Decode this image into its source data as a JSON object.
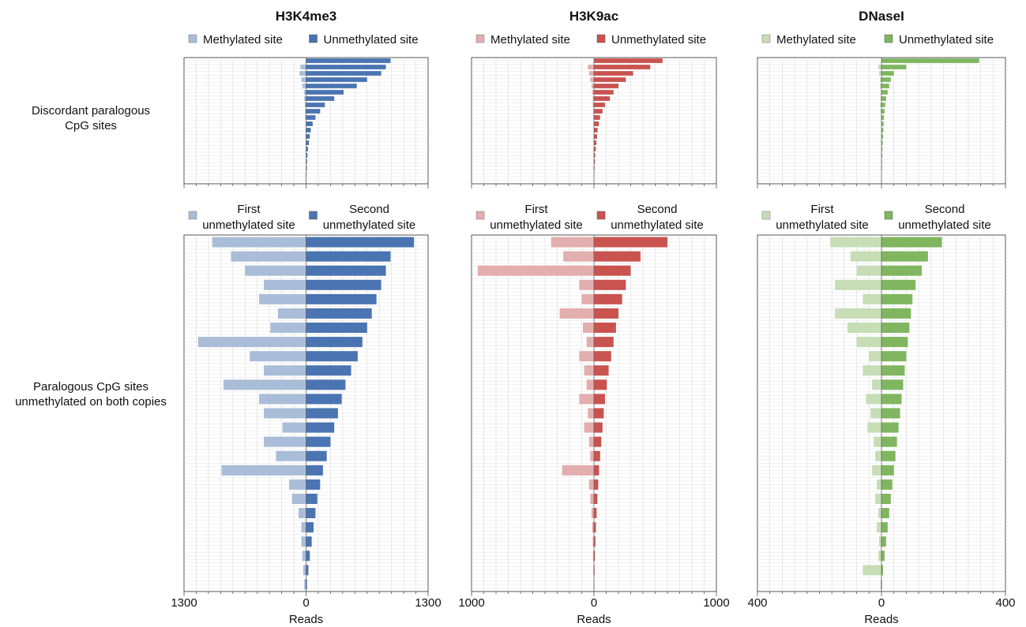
{
  "row_labels": {
    "top": [
      "Discordant paralogous",
      "CpG sites"
    ],
    "bottom": [
      "Paralogous CpG sites",
      "unmethylated on both copies"
    ]
  },
  "axis_label": "Reads",
  "legends": {
    "top": {
      "left": "Methylated site",
      "right": "Unmethylated site"
    },
    "bottom": {
      "left": [
        "First",
        "unmethylated site"
      ],
      "right": [
        "Second",
        "unmethylated site"
      ]
    }
  },
  "panels": [
    {
      "title": "H3K4me3",
      "max": 1300,
      "tick_left": "1300",
      "tick_zero": "0",
      "tick_right": "1300",
      "colors": {
        "light": "#a9bdd8",
        "dark": "#4a74b2"
      }
    },
    {
      "title": "H3K9ac",
      "max": 1000,
      "tick_left": "1000",
      "tick_zero": "0",
      "tick_right": "1000",
      "colors": {
        "light": "#e3aeae",
        "dark": "#c9534f"
      }
    },
    {
      "title": "DNaseI",
      "max": 400,
      "tick_left": "400",
      "tick_zero": "0",
      "tick_right": "400",
      "colors": {
        "light": "#c6ddb6",
        "dark": "#7fb65f"
      }
    }
  ],
  "chart_data": [
    {
      "type": "bar",
      "title": "H3K4me3",
      "subplot": "Discordant paralogous CpG sites",
      "series": [
        {
          "name": "Methylated site",
          "values": [
            0,
            -60,
            -70,
            -50,
            -40,
            -20,
            -20,
            -15,
            -10,
            -10,
            -5,
            -5,
            -5,
            0,
            0,
            0,
            0,
            0,
            0,
            0
          ]
        },
        {
          "name": "Unmethylated site",
          "values": [
            900,
            850,
            800,
            650,
            540,
            400,
            300,
            200,
            150,
            100,
            70,
            50,
            40,
            30,
            20,
            15,
            10,
            8,
            5,
            3
          ]
        }
      ],
      "xlabel": "Reads",
      "xlim": [
        -1300,
        1300
      ]
    },
    {
      "type": "bar",
      "title": "H3K4me3",
      "subplot": "Paralogous CpG sites unmethylated on both copies",
      "series": [
        {
          "name": "First unmethylated site",
          "values": [
            -1000,
            -800,
            -650,
            -450,
            -500,
            -300,
            -380,
            -1150,
            -600,
            -450,
            -880,
            -500,
            -450,
            -250,
            -450,
            -320,
            -900,
            -180,
            -150,
            -80,
            -50,
            -50,
            -40,
            -30,
            -20
          ]
        },
        {
          "name": "Second unmethylated site",
          "values": [
            1150,
            900,
            850,
            800,
            750,
            700,
            650,
            600,
            550,
            480,
            420,
            380,
            340,
            300,
            260,
            220,
            180,
            150,
            120,
            100,
            80,
            60,
            40,
            25,
            10
          ]
        }
      ],
      "xlabel": "Reads",
      "xlim": [
        -1300,
        1300
      ]
    },
    {
      "type": "bar",
      "title": "H3K9ac",
      "subplot": "Discordant paralogous CpG sites",
      "series": [
        {
          "name": "Methylated site",
          "values": [
            0,
            -50,
            -40,
            -30,
            -20,
            -15,
            -10,
            -10,
            -5,
            -5,
            0,
            0,
            0,
            0,
            0,
            0,
            0,
            0,
            0,
            0
          ]
        },
        {
          "name": "Unmethylated site",
          "values": [
            560,
            460,
            320,
            260,
            200,
            160,
            130,
            90,
            70,
            50,
            40,
            30,
            25,
            20,
            15,
            10,
            8,
            5,
            3,
            2
          ]
        }
      ],
      "xlabel": "Reads",
      "xlim": [
        -1000,
        1000
      ]
    },
    {
      "type": "bar",
      "title": "H3K9ac",
      "subplot": "Paralogous CpG sites unmethylated on both copies",
      "series": [
        {
          "name": "First unmethylated site",
          "values": [
            -350,
            -250,
            -950,
            -120,
            -100,
            -280,
            -90,
            -60,
            -120,
            -80,
            -60,
            -120,
            -50,
            -80,
            -40,
            -30,
            -260,
            -40,
            -30,
            -20,
            -15,
            -10,
            -8,
            -5,
            -3
          ]
        },
        {
          "name": "Second unmethylated site",
          "values": [
            600,
            380,
            300,
            260,
            230,
            200,
            180,
            160,
            140,
            120,
            105,
            90,
            80,
            70,
            60,
            50,
            42,
            35,
            28,
            22,
            16,
            12,
            8,
            5,
            3
          ]
        }
      ],
      "xlabel": "Reads",
      "xlim": [
        -1000,
        1000
      ]
    },
    {
      "type": "bar",
      "title": "DNaseI",
      "subplot": "Discordant paralogous CpG sites",
      "series": [
        {
          "name": "Methylated site",
          "values": [
            0,
            -10,
            -8,
            -5,
            -5,
            -3,
            -3,
            -5,
            -3,
            -2,
            0,
            0,
            0,
            0,
            0,
            0,
            0,
            0,
            0,
            0
          ]
        },
        {
          "name": "Unmethylated site",
          "values": [
            315,
            80,
            40,
            30,
            25,
            20,
            15,
            12,
            10,
            8,
            7,
            6,
            5,
            4,
            3,
            3,
            2,
            2,
            1,
            1
          ]
        }
      ],
      "xlabel": "Reads",
      "xlim": [
        -400,
        400
      ]
    },
    {
      "type": "bar",
      "title": "DNaseI",
      "subplot": "Paralogous CpG sites unmethylated on both copies",
      "series": [
        {
          "name": "First unmethylated site",
          "values": [
            -165,
            -100,
            -80,
            -150,
            -60,
            -150,
            -110,
            -80,
            -40,
            -60,
            -30,
            -50,
            -35,
            -45,
            -25,
            -20,
            -30,
            -15,
            -20,
            -10,
            -15,
            -8,
            -10,
            -60,
            -3
          ]
        },
        {
          "name": "Second unmethylated site",
          "values": [
            195,
            150,
            130,
            110,
            100,
            95,
            90,
            85,
            80,
            75,
            70,
            65,
            60,
            55,
            50,
            45,
            40,
            35,
            30,
            25,
            20,
            15,
            10,
            5,
            2
          ]
        }
      ],
      "xlabel": "Reads",
      "xlim": [
        -400,
        400
      ]
    }
  ]
}
